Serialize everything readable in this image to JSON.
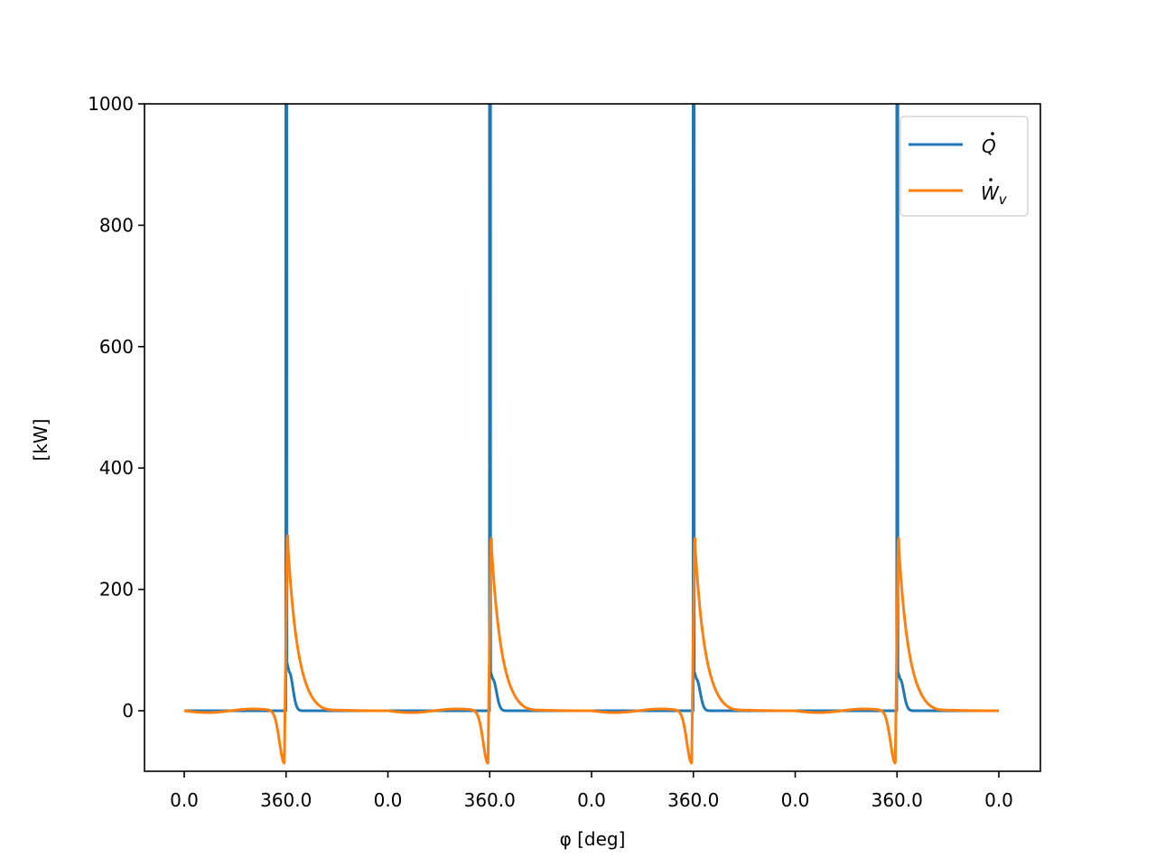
{
  "chart_data": {
    "type": "line",
    "title": "",
    "xlabel": "φ [deg]",
    "ylabel": "[kW]",
    "ylim": [
      -100,
      1000
    ],
    "xlim": [
      -80,
      1520
    ],
    "grid": false,
    "legend_position": "upper right",
    "x_ticks": [
      0,
      180,
      360,
      540,
      720,
      900,
      1080,
      1260,
      1440
    ],
    "x_tick_labels": [
      "0.0",
      "360.0",
      "0.0",
      "360.0",
      "0.0",
      "360.0",
      "0.0",
      "360.0",
      "0.0"
    ],
    "y_ticks": [
      0,
      200,
      400,
      600,
      800,
      1000
    ],
    "y_tick_labels": [
      "0",
      "200",
      "400",
      "600",
      "800",
      "1000"
    ],
    "cycles": 4,
    "series": [
      {
        "name": "Q̇",
        "legend_label": "Q",
        "legend_accent": "dot",
        "color": "#1f77b4",
        "description": "Heat release: ~0 baseline, sharp spike exceeding 1000 kW at each 360° (combustion), then small secondary bump ~60-80 kW decaying to 0",
        "peak_per_cycle": ">1000",
        "secondary_peak": [
          80,
          65,
          65,
          65
        ]
      },
      {
        "name": "Ẇ_v",
        "legend_label": "W",
        "legend_sub": "v",
        "color": "#ff7f0e",
        "description": "Volume work: small oscillation near 0, dip to about -85 kW just before 360°, then peak around 285-290 kW just after 360°, decaying to ~0",
        "min_per_cycle": [
          -85,
          -85,
          -85,
          -85
        ],
        "peak_per_cycle": [
          292,
          287,
          287,
          287
        ]
      }
    ]
  }
}
